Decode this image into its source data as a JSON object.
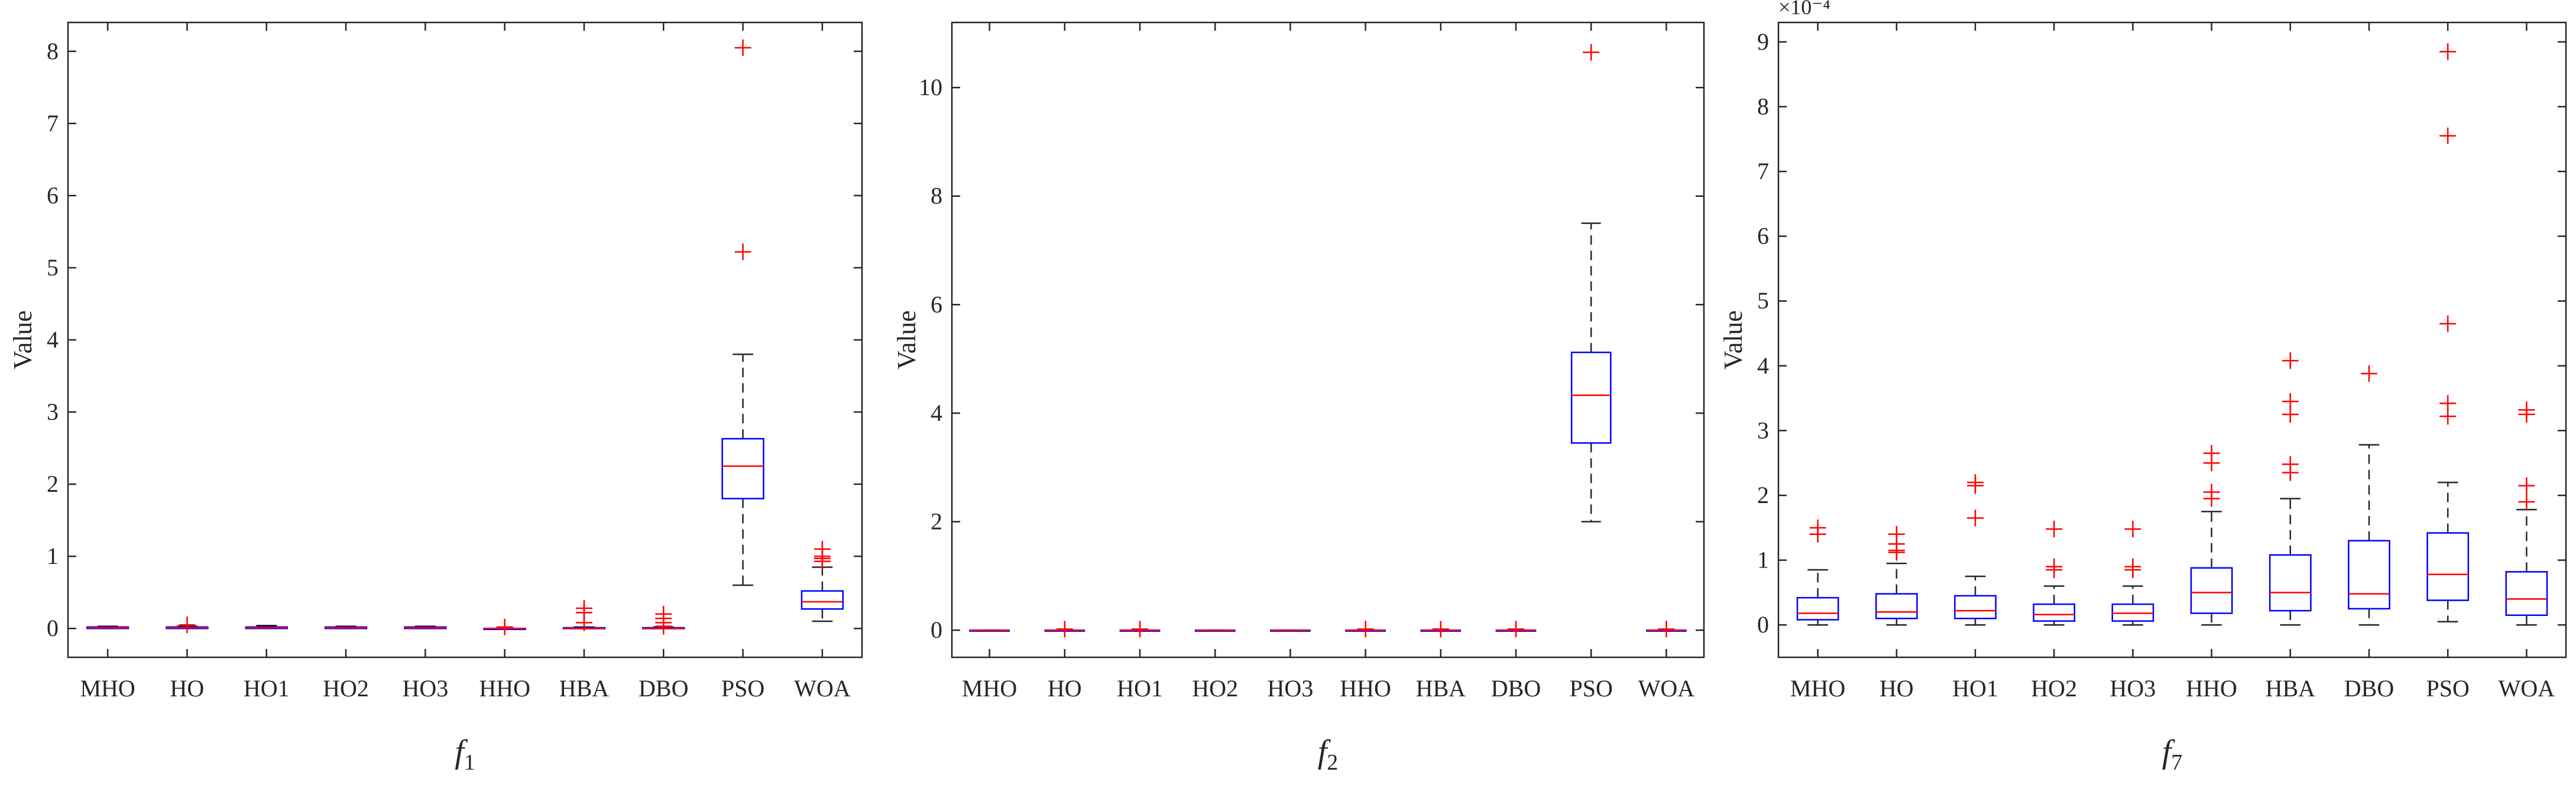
{
  "chart_data": [
    {
      "type": "box",
      "subtitle_letter": "f",
      "subtitle_index": "1",
      "ylabel": "Value",
      "ylim": [
        -0.4,
        8.4
      ],
      "yticks": [
        0,
        1,
        2,
        3,
        4,
        5,
        6,
        7,
        8
      ],
      "exponent_label": "",
      "categories": [
        "MHO",
        "HO",
        "HO1",
        "HO2",
        "HO3",
        "HHO",
        "HBA",
        "DBO",
        "PSO",
        "WOA"
      ],
      "boxes": [
        {
          "whisker_low": 0.0,
          "q1": 0.0,
          "median": 0.01,
          "q3": 0.02,
          "whisker_high": 0.03,
          "outliers": []
        },
        {
          "whisker_low": 0.0,
          "q1": 0.0,
          "median": 0.01,
          "q3": 0.02,
          "whisker_high": 0.03,
          "outliers": [
            0.05
          ]
        },
        {
          "whisker_low": 0.0,
          "q1": 0.0,
          "median": 0.01,
          "q3": 0.02,
          "whisker_high": 0.04,
          "outliers": []
        },
        {
          "whisker_low": 0.0,
          "q1": 0.0,
          "median": 0.01,
          "q3": 0.02,
          "whisker_high": 0.03,
          "outliers": []
        },
        {
          "whisker_low": 0.0,
          "q1": 0.0,
          "median": 0.01,
          "q3": 0.02,
          "whisker_high": 0.03,
          "outliers": []
        },
        {
          "whisker_low": 0.0,
          "q1": 0.0,
          "median": 0.0,
          "q3": 0.0,
          "whisker_high": 0.0,
          "outliers": [
            0.02
          ]
        },
        {
          "whisker_low": 0.0,
          "q1": 0.0,
          "median": 0.0,
          "q3": 0.01,
          "whisker_high": 0.02,
          "outliers": [
            0.08,
            0.22,
            0.28
          ]
        },
        {
          "whisker_low": 0.0,
          "q1": 0.0,
          "median": 0.0,
          "q3": 0.01,
          "whisker_high": 0.02,
          "outliers": [
            0.03,
            0.08,
            0.14,
            0.2
          ]
        },
        {
          "whisker_low": 0.6,
          "q1": 1.8,
          "median": 2.25,
          "q3": 2.63,
          "whisker_high": 3.8,
          "outliers": [
            5.22,
            8.05
          ]
        },
        {
          "whisker_low": 0.1,
          "q1": 0.27,
          "median": 0.37,
          "q3": 0.52,
          "whisker_high": 0.85,
          "outliers": [
            0.93,
            0.97,
            1.0,
            1.1
          ]
        }
      ]
    },
    {
      "type": "box",
      "subtitle_letter": "f",
      "subtitle_index": "2",
      "ylabel": "Value",
      "ylim": [
        -0.5,
        11.2
      ],
      "yticks": [
        0,
        2,
        4,
        6,
        8,
        10
      ],
      "exponent_label": "",
      "categories": [
        "MHO",
        "HO",
        "HO1",
        "HO2",
        "HO3",
        "HHO",
        "HBA",
        "DBO",
        "PSO",
        "WOA"
      ],
      "boxes": [
        {
          "whisker_low": 0.0,
          "q1": 0.0,
          "median": 0.0,
          "q3": 0.0,
          "whisker_high": 0.0,
          "outliers": []
        },
        {
          "whisker_low": 0.0,
          "q1": 0.0,
          "median": 0.0,
          "q3": 0.0,
          "whisker_high": 0.0,
          "outliers": [
            0.02
          ]
        },
        {
          "whisker_low": 0.0,
          "q1": 0.0,
          "median": 0.0,
          "q3": 0.0,
          "whisker_high": 0.0,
          "outliers": [
            0.02
          ]
        },
        {
          "whisker_low": 0.0,
          "q1": 0.0,
          "median": 0.0,
          "q3": 0.0,
          "whisker_high": 0.0,
          "outliers": []
        },
        {
          "whisker_low": 0.0,
          "q1": 0.0,
          "median": 0.0,
          "q3": 0.0,
          "whisker_high": 0.0,
          "outliers": []
        },
        {
          "whisker_low": 0.0,
          "q1": 0.0,
          "median": 0.0,
          "q3": 0.0,
          "whisker_high": 0.0,
          "outliers": [
            0.02
          ]
        },
        {
          "whisker_low": 0.0,
          "q1": 0.0,
          "median": 0.0,
          "q3": 0.0,
          "whisker_high": 0.0,
          "outliers": [
            0.02
          ]
        },
        {
          "whisker_low": 0.0,
          "q1": 0.0,
          "median": 0.0,
          "q3": 0.0,
          "whisker_high": 0.0,
          "outliers": [
            0.02
          ]
        },
        {
          "whisker_low": 2.0,
          "q1": 3.45,
          "median": 4.33,
          "q3": 5.12,
          "whisker_high": 7.5,
          "outliers": [
            10.65
          ]
        },
        {
          "whisker_low": 0.0,
          "q1": 0.0,
          "median": 0.0,
          "q3": 0.0,
          "whisker_high": 0.0,
          "outliers": [
            0.02
          ]
        }
      ]
    },
    {
      "type": "box",
      "subtitle_letter": "f",
      "subtitle_index": "7",
      "ylabel": "Value",
      "ylim": [
        -0.5,
        9.3
      ],
      "yticks": [
        0,
        1,
        2,
        3,
        4,
        5,
        6,
        7,
        8,
        9
      ],
      "exponent_label": "×10⁻⁴",
      "categories": [
        "MHO",
        "HO",
        "HO1",
        "HO2",
        "HO3",
        "HHO",
        "HBA",
        "DBO",
        "PSO",
        "WOA"
      ],
      "boxes": [
        {
          "whisker_low": 0.0,
          "q1": 0.08,
          "median": 0.18,
          "q3": 0.42,
          "whisker_high": 0.85,
          "outliers": [
            1.4,
            1.5
          ]
        },
        {
          "whisker_low": 0.0,
          "q1": 0.1,
          "median": 0.2,
          "q3": 0.48,
          "whisker_high": 0.95,
          "outliers": [
            1.12,
            1.15,
            1.25,
            1.4
          ]
        },
        {
          "whisker_low": 0.0,
          "q1": 0.1,
          "median": 0.22,
          "q3": 0.45,
          "whisker_high": 0.75,
          "outliers": [
            1.65,
            2.15,
            2.2
          ]
        },
        {
          "whisker_low": 0.0,
          "q1": 0.06,
          "median": 0.16,
          "q3": 0.32,
          "whisker_high": 0.6,
          "outliers": [
            0.85,
            0.9,
            1.48
          ]
        },
        {
          "whisker_low": 0.0,
          "q1": 0.06,
          "median": 0.18,
          "q3": 0.32,
          "whisker_high": 0.6,
          "outliers": [
            0.85,
            0.9,
            1.48
          ]
        },
        {
          "whisker_low": 0.0,
          "q1": 0.18,
          "median": 0.5,
          "q3": 0.88,
          "whisker_high": 1.75,
          "outliers": [
            1.95,
            2.05,
            2.5,
            2.65
          ]
        },
        {
          "whisker_low": 0.0,
          "q1": 0.22,
          "median": 0.5,
          "q3": 1.08,
          "whisker_high": 1.95,
          "outliers": [
            2.35,
            2.48,
            3.25,
            3.45,
            4.08
          ]
        },
        {
          "whisker_low": 0.0,
          "q1": 0.25,
          "median": 0.48,
          "q3": 1.3,
          "whisker_high": 2.78,
          "outliers": [
            3.88
          ]
        },
        {
          "whisker_low": 0.05,
          "q1": 0.38,
          "median": 0.78,
          "q3": 1.42,
          "whisker_high": 2.2,
          "outliers": [
            3.22,
            3.42,
            4.65,
            7.55,
            8.85
          ]
        },
        {
          "whisker_low": 0.0,
          "q1": 0.15,
          "median": 0.4,
          "q3": 0.82,
          "whisker_high": 1.78,
          "outliers": [
            1.9,
            2.15,
            3.25,
            3.32
          ]
        }
      ]
    }
  ],
  "colors": {
    "box": "#0000ff",
    "median": "#ff0000",
    "outlier": "#ff0000",
    "whisker": "#262626"
  }
}
